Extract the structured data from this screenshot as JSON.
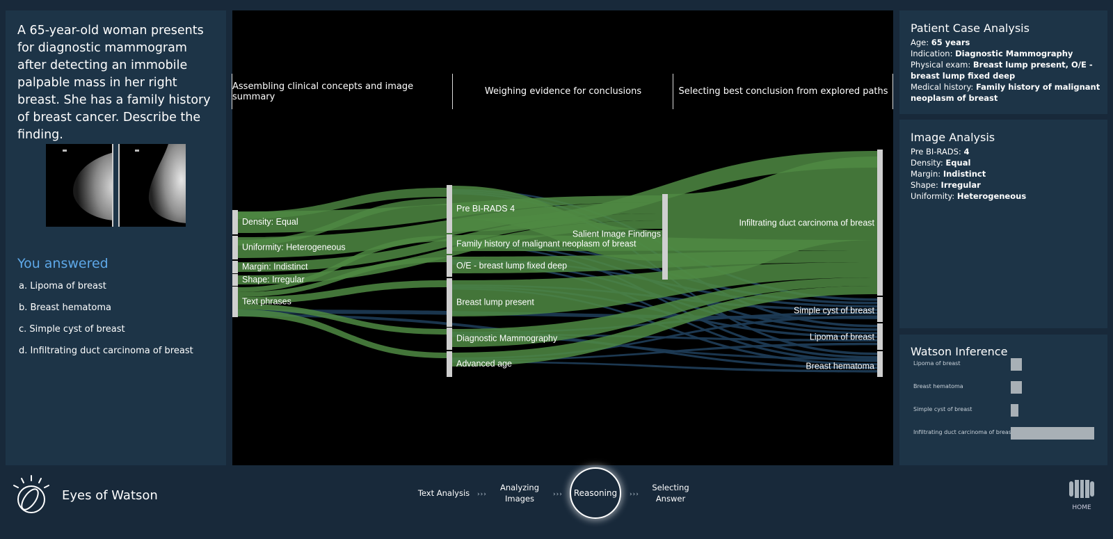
{
  "question": "A 65-year-old woman presents for diagnostic mammogram after detecting an immobile palpable mass in her right breast. She has a family history of breast cancer. Describe the finding.",
  "you_answered_label": "You answered",
  "answers": [
    "a. Lipoma of breast",
    "b. Breast hematoma",
    "c. Simple cyst of breast",
    "d. Infiltrating duct carcinoma of breast"
  ],
  "stages": [
    "Assembling clinical concepts and image summary",
    "Weighing evidence for conclusions",
    "Selecting best conclusion from explored paths"
  ],
  "sankey": {
    "left_nodes": [
      "Density: Equal",
      "Uniformity: Heterogeneous",
      "Margin: Indistinct",
      "Shape: Irregular",
      "Text phrases"
    ],
    "mid_nodes": [
      "Pre BI-RADS 4",
      "Family history of malignant neoplasm of breast",
      "O/E - breast lump fixed deep",
      "Breast lump present",
      "Diagnostic Mammography",
      "Advanced age"
    ],
    "mid2_nodes": [
      "Salient Image Findings"
    ],
    "right_nodes": [
      "Infiltrating duct carcinoma of breast",
      "Simple cyst of breast",
      "Lipoma of breast",
      "Breast hematoma"
    ],
    "colors": {
      "green_flow": "#4f8a43",
      "blue_flow": "#1d3b55",
      "node": "#cfcfcf"
    }
  },
  "patient": {
    "title": "Patient Case Analysis",
    "age_key": "Age:",
    "age_val": "65 years",
    "indication_key": "Indication:",
    "indication_val": "Diagnostic Mammography",
    "exam_key": "Physical exam:",
    "exam_val": "Breast lump present, O/E - breast lump fixed deep",
    "history_key": "Medical history:",
    "history_val": "Family history of malignant neoplasm of breast"
  },
  "image_analysis": {
    "title": "Image Analysis",
    "birads_key": "Pre BI-RADS:",
    "birads_val": "4",
    "density_key": "Density:",
    "density_val": "Equal",
    "margin_key": "Margin:",
    "margin_val": "Indistinct",
    "shape_key": "Shape:",
    "shape_val": "Irregular",
    "uniformity_key": "Uniformity:",
    "uniformity_val": "Heterogeneous"
  },
  "watson": {
    "title": "Watson Inference",
    "items": [
      {
        "label": "Lipoma of breast",
        "value": 0.13
      },
      {
        "label": "Breast hematoma",
        "value": 0.13
      },
      {
        "label": "Simple cyst of breast",
        "value": 0.09
      },
      {
        "label": "Infiltrating duct carcinoma of breast",
        "value": 1.0
      }
    ]
  },
  "footer": {
    "brand": "Eyes of Watson",
    "step1": "Text Analysis",
    "step2_line1": "Analyzing",
    "step2_line2": "Images",
    "step3": "Reasoning",
    "step4_line1": "Selecting",
    "step4_line2": "Answer",
    "arrows": "›››",
    "home": "HOME"
  }
}
